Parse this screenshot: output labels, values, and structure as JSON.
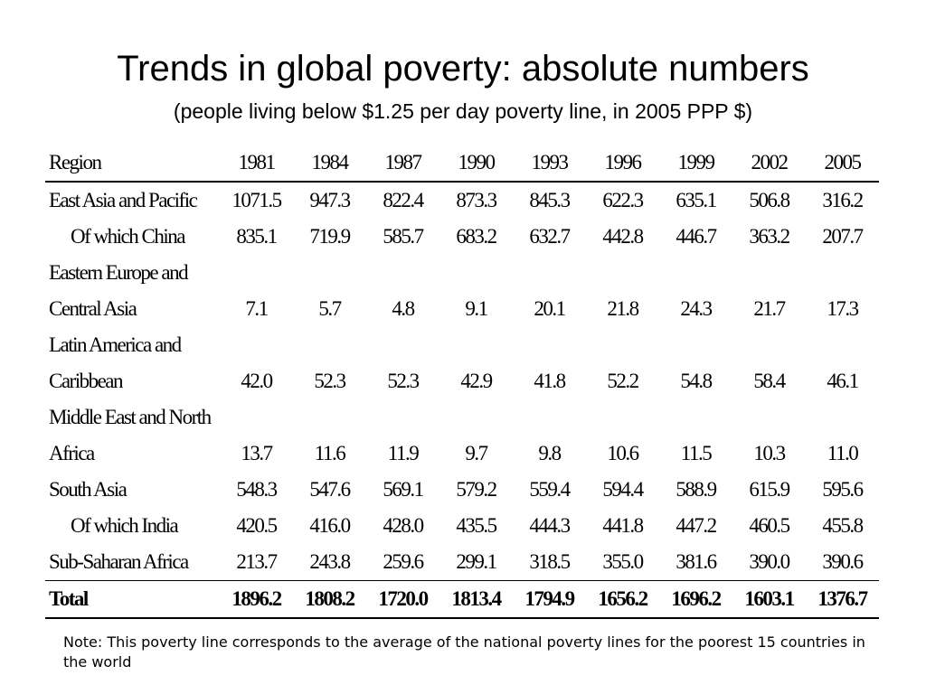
{
  "title": "Trends in global poverty: absolute numbers",
  "subtitle": "(people living below $1.25 per day poverty line, in 2005 PPP $)",
  "table": {
    "region_header": "Region",
    "years": [
      "1981",
      "1984",
      "1987",
      "1990",
      "1993",
      "1996",
      "1999",
      "2002",
      "2005"
    ],
    "rows": [
      {
        "label": "East Asia and Pacific",
        "values": [
          "1071.5",
          "947.3",
          "822.4",
          "873.3",
          "845.3",
          "622.3",
          "635.1",
          "506.8",
          "316.2"
        ]
      },
      {
        "label": "Of which China",
        "values": [
          "835.1",
          "719.9",
          "585.7",
          "683.2",
          "632.7",
          "442.8",
          "446.7",
          "363.2",
          "207.7"
        ]
      },
      {
        "label_line1": "Eastern Europe and",
        "label_line2": "Central Asia",
        "values": [
          "7.1",
          "5.7",
          "4.8",
          "9.1",
          "20.1",
          "21.8",
          "24.3",
          "21.7",
          "17.3"
        ]
      },
      {
        "label_line1": "Latin America and",
        "label_line2": "Caribbean",
        "values": [
          "42.0",
          "52.3",
          "52.3",
          "42.9",
          "41.8",
          "52.2",
          "54.8",
          "58.4",
          "46.1"
        ]
      },
      {
        "label_line1": "Middle East and North",
        "label_line2": "Africa",
        "values": [
          "13.7",
          "11.6",
          "11.9",
          "9.7",
          "9.8",
          "10.6",
          "11.5",
          "10.3",
          "11.0"
        ]
      },
      {
        "label": "South Asia",
        "values": [
          "548.3",
          "547.6",
          "569.1",
          "579.2",
          "559.4",
          "594.4",
          "588.9",
          "615.9",
          "595.6"
        ]
      },
      {
        "label": "Of which India",
        "values": [
          "420.5",
          "416.0",
          "428.0",
          "435.5",
          "444.3",
          "441.8",
          "447.2",
          "460.5",
          "455.8"
        ]
      },
      {
        "label": "Sub-Saharan Africa",
        "values": [
          "213.7",
          "243.8",
          "259.6",
          "299.1",
          "318.5",
          "355.0",
          "381.6",
          "390.0",
          "390.6"
        ]
      },
      {
        "label": "Total",
        "values": [
          "1896.2",
          "1808.2",
          "1720.0",
          "1813.4",
          "1794.9",
          "1656.2",
          "1696.2",
          "1603.1",
          "1376.7"
        ]
      }
    ]
  },
  "note": "Note: This poverty line corresponds to the average of the national poverty lines for the poorest 15 countries in the world"
}
